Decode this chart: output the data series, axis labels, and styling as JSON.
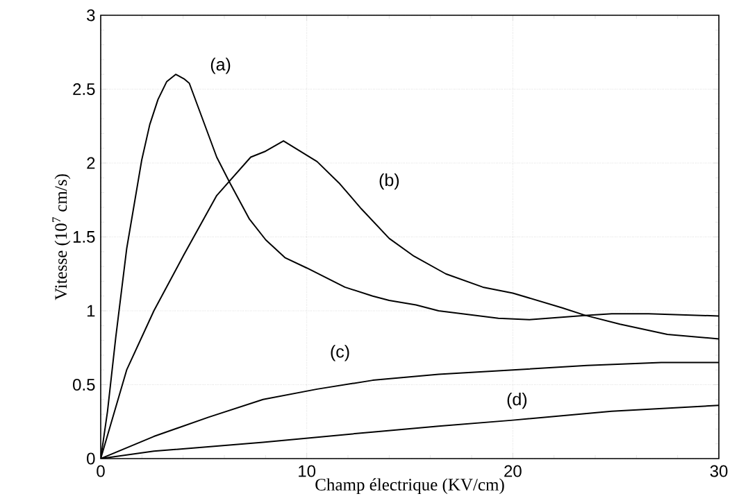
{
  "chart_data": {
    "type": "line",
    "xlabel": "Champ électrique (KV/cm)",
    "ylabel": "Vitesse (10$^{7}$ cm/s)",
    "xlim": [
      0,
      30
    ],
    "ylim": [
      0,
      3
    ],
    "xticks": [
      0,
      10,
      20,
      30
    ],
    "yticks": [
      0,
      0.5,
      1,
      1.5,
      2,
      2.5,
      3
    ],
    "grid": true,
    "marker": "none",
    "line_style": "solid",
    "series": [
      {
        "name": "(a)",
        "color": "#000000",
        "x": [
          0,
          0.33,
          0.73,
          1.26,
          1.99,
          2.38,
          2.78,
          3.2,
          3.64,
          4.04,
          4.3,
          5.63,
          6.29,
          7.22,
          8.01,
          8.94,
          10,
          11.85,
          13.2,
          14,
          15.3,
          16.4,
          19.3,
          20.8,
          23.6,
          24.8,
          26.6,
          30
        ],
        "values": [
          0,
          0.32,
          0.82,
          1.42,
          2.02,
          2.26,
          2.43,
          2.55,
          2.6,
          2.57,
          2.54,
          2.04,
          1.86,
          1.62,
          1.48,
          1.36,
          1.29,
          1.16,
          1.1,
          1.07,
          1.04,
          1.0,
          0.95,
          0.94,
          0.97,
          0.98,
          0.98,
          0.965
        ]
      },
      {
        "name": "(b)",
        "color": "#000000",
        "x": [
          0,
          1.26,
          2.58,
          4.04,
          5.63,
          7.28,
          8.0,
          8.87,
          10.5,
          11.6,
          12.65,
          14,
          15.2,
          16.75,
          18.55,
          20,
          22.4,
          23.5,
          25.2,
          27.5,
          30
        ],
        "values": [
          0,
          0.6,
          1.0,
          1.38,
          1.78,
          2.04,
          2.08,
          2.15,
          2.01,
          1.86,
          1.69,
          1.49,
          1.37,
          1.25,
          1.16,
          1.12,
          1.02,
          0.97,
          0.91,
          0.84,
          0.81
        ]
      },
      {
        "name": "(c)",
        "color": "#000000",
        "x": [
          0,
          2.58,
          5.23,
          7.88,
          10.5,
          13.2,
          16.4,
          20,
          23.6,
          27.2,
          30
        ],
        "values": [
          0,
          0.15,
          0.28,
          0.4,
          0.47,
          0.53,
          0.57,
          0.6,
          0.63,
          0.65,
          0.65
        ]
      },
      {
        "name": "(d)",
        "color": "#000000",
        "x": [
          0,
          2.58,
          7.88,
          13.2,
          16.4,
          20,
          24.8,
          30
        ],
        "values": [
          0,
          0.05,
          0.11,
          0.18,
          0.22,
          0.26,
          0.32,
          0.36
        ]
      }
    ]
  }
}
